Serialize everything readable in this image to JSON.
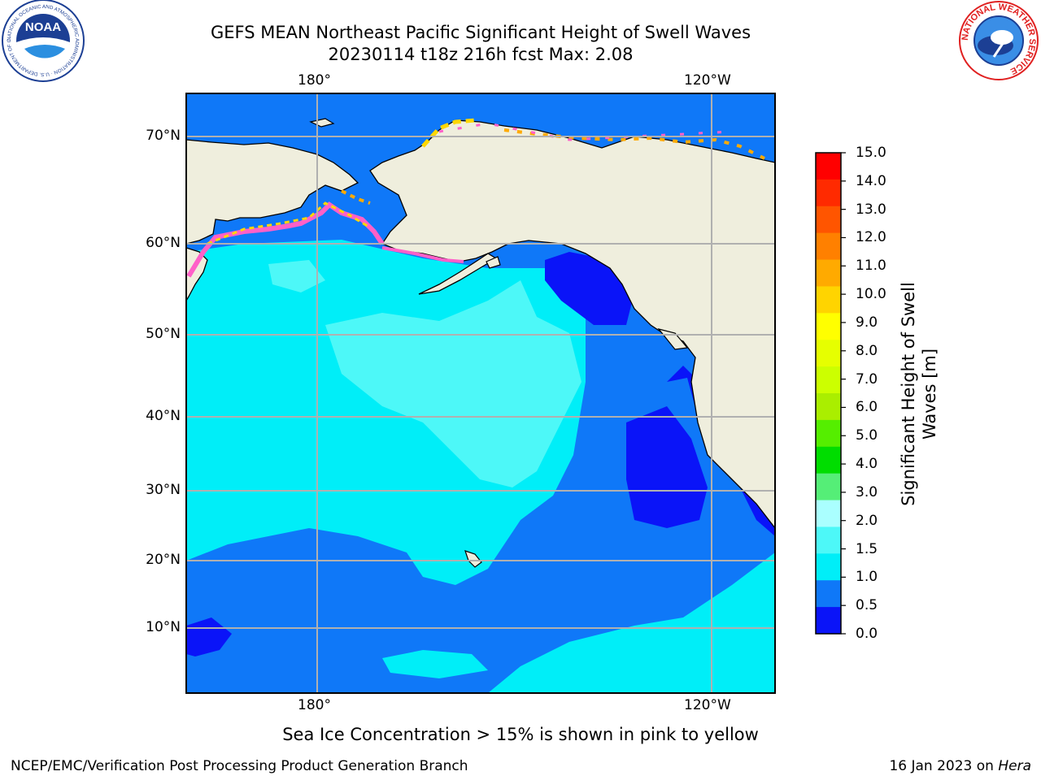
{
  "header": {
    "title_line1": "GEFS MEAN Northeast Pacific Significant Height of Swell Waves",
    "title_line2": "20230114 t18z 216h fcst   Max: 2.08"
  },
  "logos": {
    "noaa": {
      "text": "NOAA",
      "ring_text": "NATIONAL OCEANIC AND ATMOSPHERIC ADMINISTRATION · U.S. DEPARTMENT OF COMMERCE"
    },
    "nws": {
      "ring_text": "NATIONAL WEATHER SERVICE"
    }
  },
  "map": {
    "lon_labels": [
      "180°",
      "120°W"
    ],
    "lat_labels": [
      "70°N",
      "60°N",
      "50°N",
      "40°N",
      "30°N",
      "20°N",
      "10°N"
    ],
    "colors": {
      "land": "#efeedd",
      "ocean_blue": "#0f78f8",
      "ocean_cyan": "#00eef8",
      "ocean_light_cyan": "#4df8f8",
      "ocean_dark_blue": "#0a14f8",
      "ice_pink": "#ff60c8",
      "ice_yellow": "#ffd700",
      "grid": "#b0b0b0"
    }
  },
  "colorbar": {
    "title_line1": "Significant Height of Swell",
    "title_line2": "Waves [m]",
    "ticks": [
      "15.0",
      "14.0",
      "13.0",
      "12.0",
      "11.0",
      "10.0",
      "9.0",
      "8.0",
      "7.0",
      "6.0",
      "5.0",
      "4.0",
      "3.0",
      "2.0",
      "1.5",
      "1.0",
      "0.5",
      "0.0"
    ],
    "colors_top_to_bottom": [
      "#ff0000",
      "#ff2a00",
      "#ff5500",
      "#ff8000",
      "#ffaa00",
      "#ffd400",
      "#ffff00",
      "#e6ff00",
      "#ccff00",
      "#aaee00",
      "#55ee00",
      "#00dd00",
      "#55ee77",
      "#aaffff",
      "#4df8f8",
      "#00eef8",
      "#0f78f8",
      "#0a14f8"
    ]
  },
  "note": "Sea Ice Concentration > 15% is shown in pink to yellow",
  "footer": {
    "left": "NCEP/EMC/Verification Post Processing Product Generation Branch",
    "right_prefix": "16 Jan 2023 on ",
    "right_italic": "Hera"
  }
}
